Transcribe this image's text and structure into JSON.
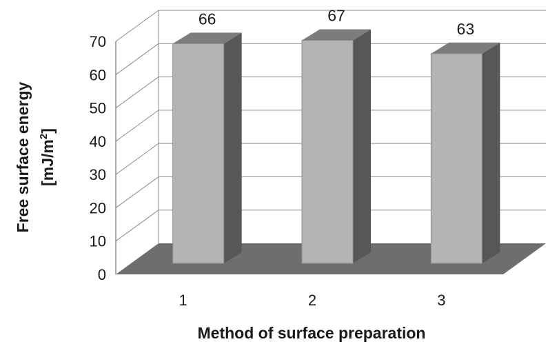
{
  "chart_data": {
    "type": "bar",
    "categories": [
      "1",
      "2",
      "3"
    ],
    "values": [
      66,
      67,
      63
    ],
    "xlabel": "Method of surface preparation",
    "ylabel_line1": "Free surface energy",
    "ylabel_line2_prefix": "[mJ/m",
    "ylabel_line2_sup": "2",
    "ylabel_line2_suffix": "]",
    "ylim": [
      0,
      70
    ],
    "yticks": [
      0,
      10,
      20,
      30,
      40,
      50,
      60,
      70
    ],
    "grid": true,
    "data_labels": true,
    "style": "3d-column",
    "colors": {
      "bar_front": "#b4b4b4",
      "bar_side": "#575757",
      "bar_top": "#7c7c7c",
      "floor": "#6e6e6e",
      "gridline": "#8a8a8a"
    }
  }
}
